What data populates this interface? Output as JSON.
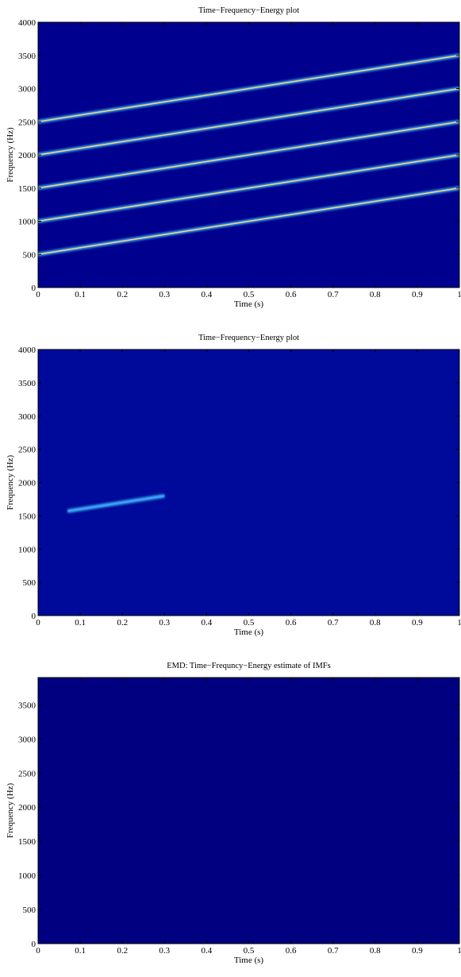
{
  "chart_data": [
    {
      "type": "heatmap",
      "title": "Time−Frequency−Energy plot",
      "xlabel": "Time (s)",
      "ylabel": "Frequency (Hz)",
      "xlim": [
        0,
        1
      ],
      "ylim": [
        0,
        4000
      ],
      "xticks": [
        0,
        0.1,
        0.2,
        0.3,
        0.4,
        0.5,
        0.6,
        0.7,
        0.8,
        0.9,
        1
      ],
      "yticks": [
        0,
        500,
        1000,
        1500,
        2000,
        2500,
        3000,
        3500,
        4000
      ],
      "background": "#00008f",
      "line_color": "#ffd27a",
      "lines": [
        {
          "x": [
            0,
            1
          ],
          "y": [
            500,
            1500
          ]
        },
        {
          "x": [
            0,
            1
          ],
          "y": [
            1000,
            2000
          ]
        },
        {
          "x": [
            0,
            1
          ],
          "y": [
            1500,
            2500
          ]
        },
        {
          "x": [
            0,
            1
          ],
          "y": [
            2000,
            3000
          ]
        },
        {
          "x": [
            0,
            1
          ],
          "y": [
            2500,
            3500
          ]
        }
      ]
    },
    {
      "type": "heatmap",
      "title": "Time−Frequency−Energy plot",
      "xlabel": "Time (s)",
      "ylabel": "Frequency (Hz)",
      "xlim": [
        0,
        1
      ],
      "ylim": [
        0,
        4000
      ],
      "xticks": [
        0,
        0.1,
        0.2,
        0.3,
        0.4,
        0.5,
        0.6,
        0.7,
        0.8,
        0.9,
        1
      ],
      "yticks": [
        0,
        500,
        1000,
        1500,
        2000,
        2500,
        3000,
        3500,
        4000
      ],
      "background": "#000a9a",
      "line_color": "#4aa0ff",
      "lines": [
        {
          "x": [
            0.07,
            0.3
          ],
          "y": [
            1570,
            1800
          ]
        }
      ]
    },
    {
      "type": "heatmap",
      "title": "EMD: Time−Frequncy−Energy estimate of IMFs",
      "xlabel": "Time (s)",
      "ylabel": "Frequency (Hz)",
      "xlim": [
        0,
        1
      ],
      "ylim": [
        0,
        3900
      ],
      "xticks": [
        0,
        0.1,
        0.2,
        0.3,
        0.4,
        0.5,
        0.6,
        0.7,
        0.8,
        0.9,
        1
      ],
      "yticks": [
        0,
        500,
        1000,
        1500,
        2000,
        2500,
        3000,
        3500
      ],
      "background": "#000080",
      "line_color": "#2a7bff",
      "lines": []
    }
  ]
}
